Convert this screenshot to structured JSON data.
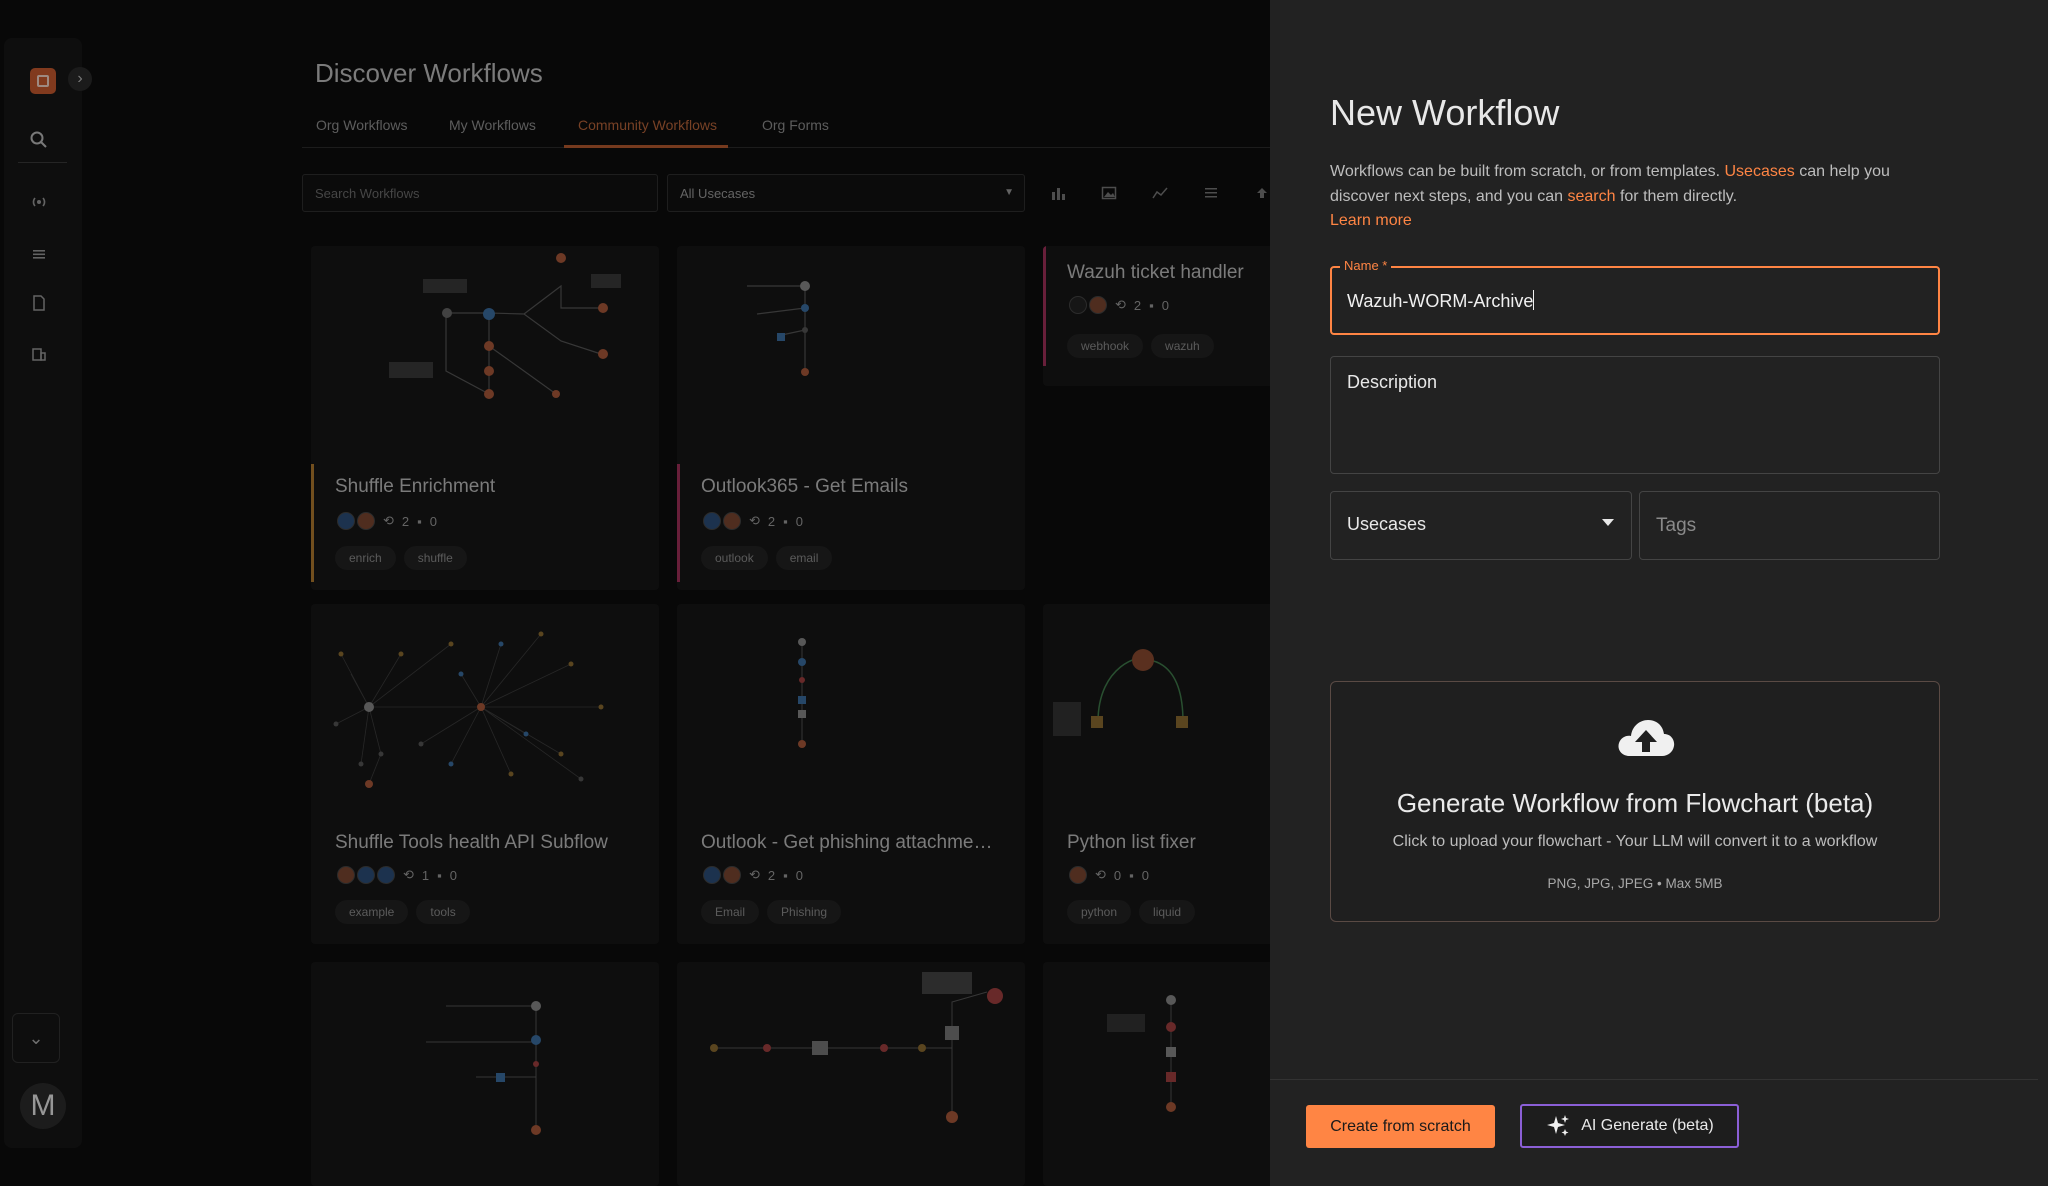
{
  "background": {
    "page_title": "Discover Workflows",
    "tabs": [
      {
        "label": "Org Workflows"
      },
      {
        "label": "My Workflows"
      },
      {
        "label": "Community Workflows",
        "active": true
      },
      {
        "label": "Org Forms"
      }
    ],
    "search_placeholder": "Search Workflows",
    "usecase_filter": "All Usecases",
    "toolbar_icons": [
      "bar-chart-icon",
      "image-icon",
      "graph-icon",
      "list-icon",
      "upload-icon"
    ],
    "cards": [
      {
        "title": "Shuffle Enrichment",
        "runs": "2",
        "comments": "0",
        "tags": [
          "enrich",
          "shuffle"
        ],
        "accent": "#b07a2e"
      },
      {
        "title": "Outlook365 - Get Emails",
        "runs": "2",
        "comments": "0",
        "tags": [
          "outlook",
          "email"
        ],
        "accent": "#a0305a"
      },
      {
        "title": "Wazuh ticket handler",
        "runs": "2",
        "comments": "0",
        "tags": [
          "webhook",
          "wazuh"
        ],
        "accent": "#a0305a"
      },
      {
        "title": "Shuffle Tools health API Subflow",
        "runs": "1",
        "comments": "0",
        "tags": [
          "example",
          "tools"
        ],
        "accent": ""
      },
      {
        "title": "Outlook - Get phishing attachme…",
        "runs": "2",
        "comments": "0",
        "tags": [
          "Email",
          "Phishing"
        ],
        "accent": ""
      },
      {
        "title": "Python list fixer",
        "runs": "0",
        "comments": "0",
        "tags": [
          "python",
          "liquid"
        ],
        "accent": ""
      }
    ],
    "avatar_initial": "M"
  },
  "panel": {
    "title": "New Workflow",
    "desc_part1": "Workflows can be built from scratch, or from templates. ",
    "desc_link_usecases": "Usecases",
    "desc_part2": " can help you discover next steps, and you can ",
    "desc_link_search": "search",
    "desc_part3": " for them directly.",
    "desc_link_learn": "Learn more",
    "name_label": "Name *",
    "name_value": "Wazuh-WORM-Archive",
    "description_placeholder": "Description",
    "usecases_label": "Usecases",
    "tags_placeholder": "Tags",
    "upload": {
      "title": "Generate Workflow from Flowchart (beta)",
      "subtitle": "Click to upload your flowchart - Your LLM will convert it to a workflow",
      "formats": "PNG, JPG, JPEG • Max 5MB"
    },
    "create_button": "Create from scratch",
    "ai_button": "AI Generate (beta)",
    "accent_color": "#ff8544",
    "ai_border_color": "#8b5fd6"
  }
}
